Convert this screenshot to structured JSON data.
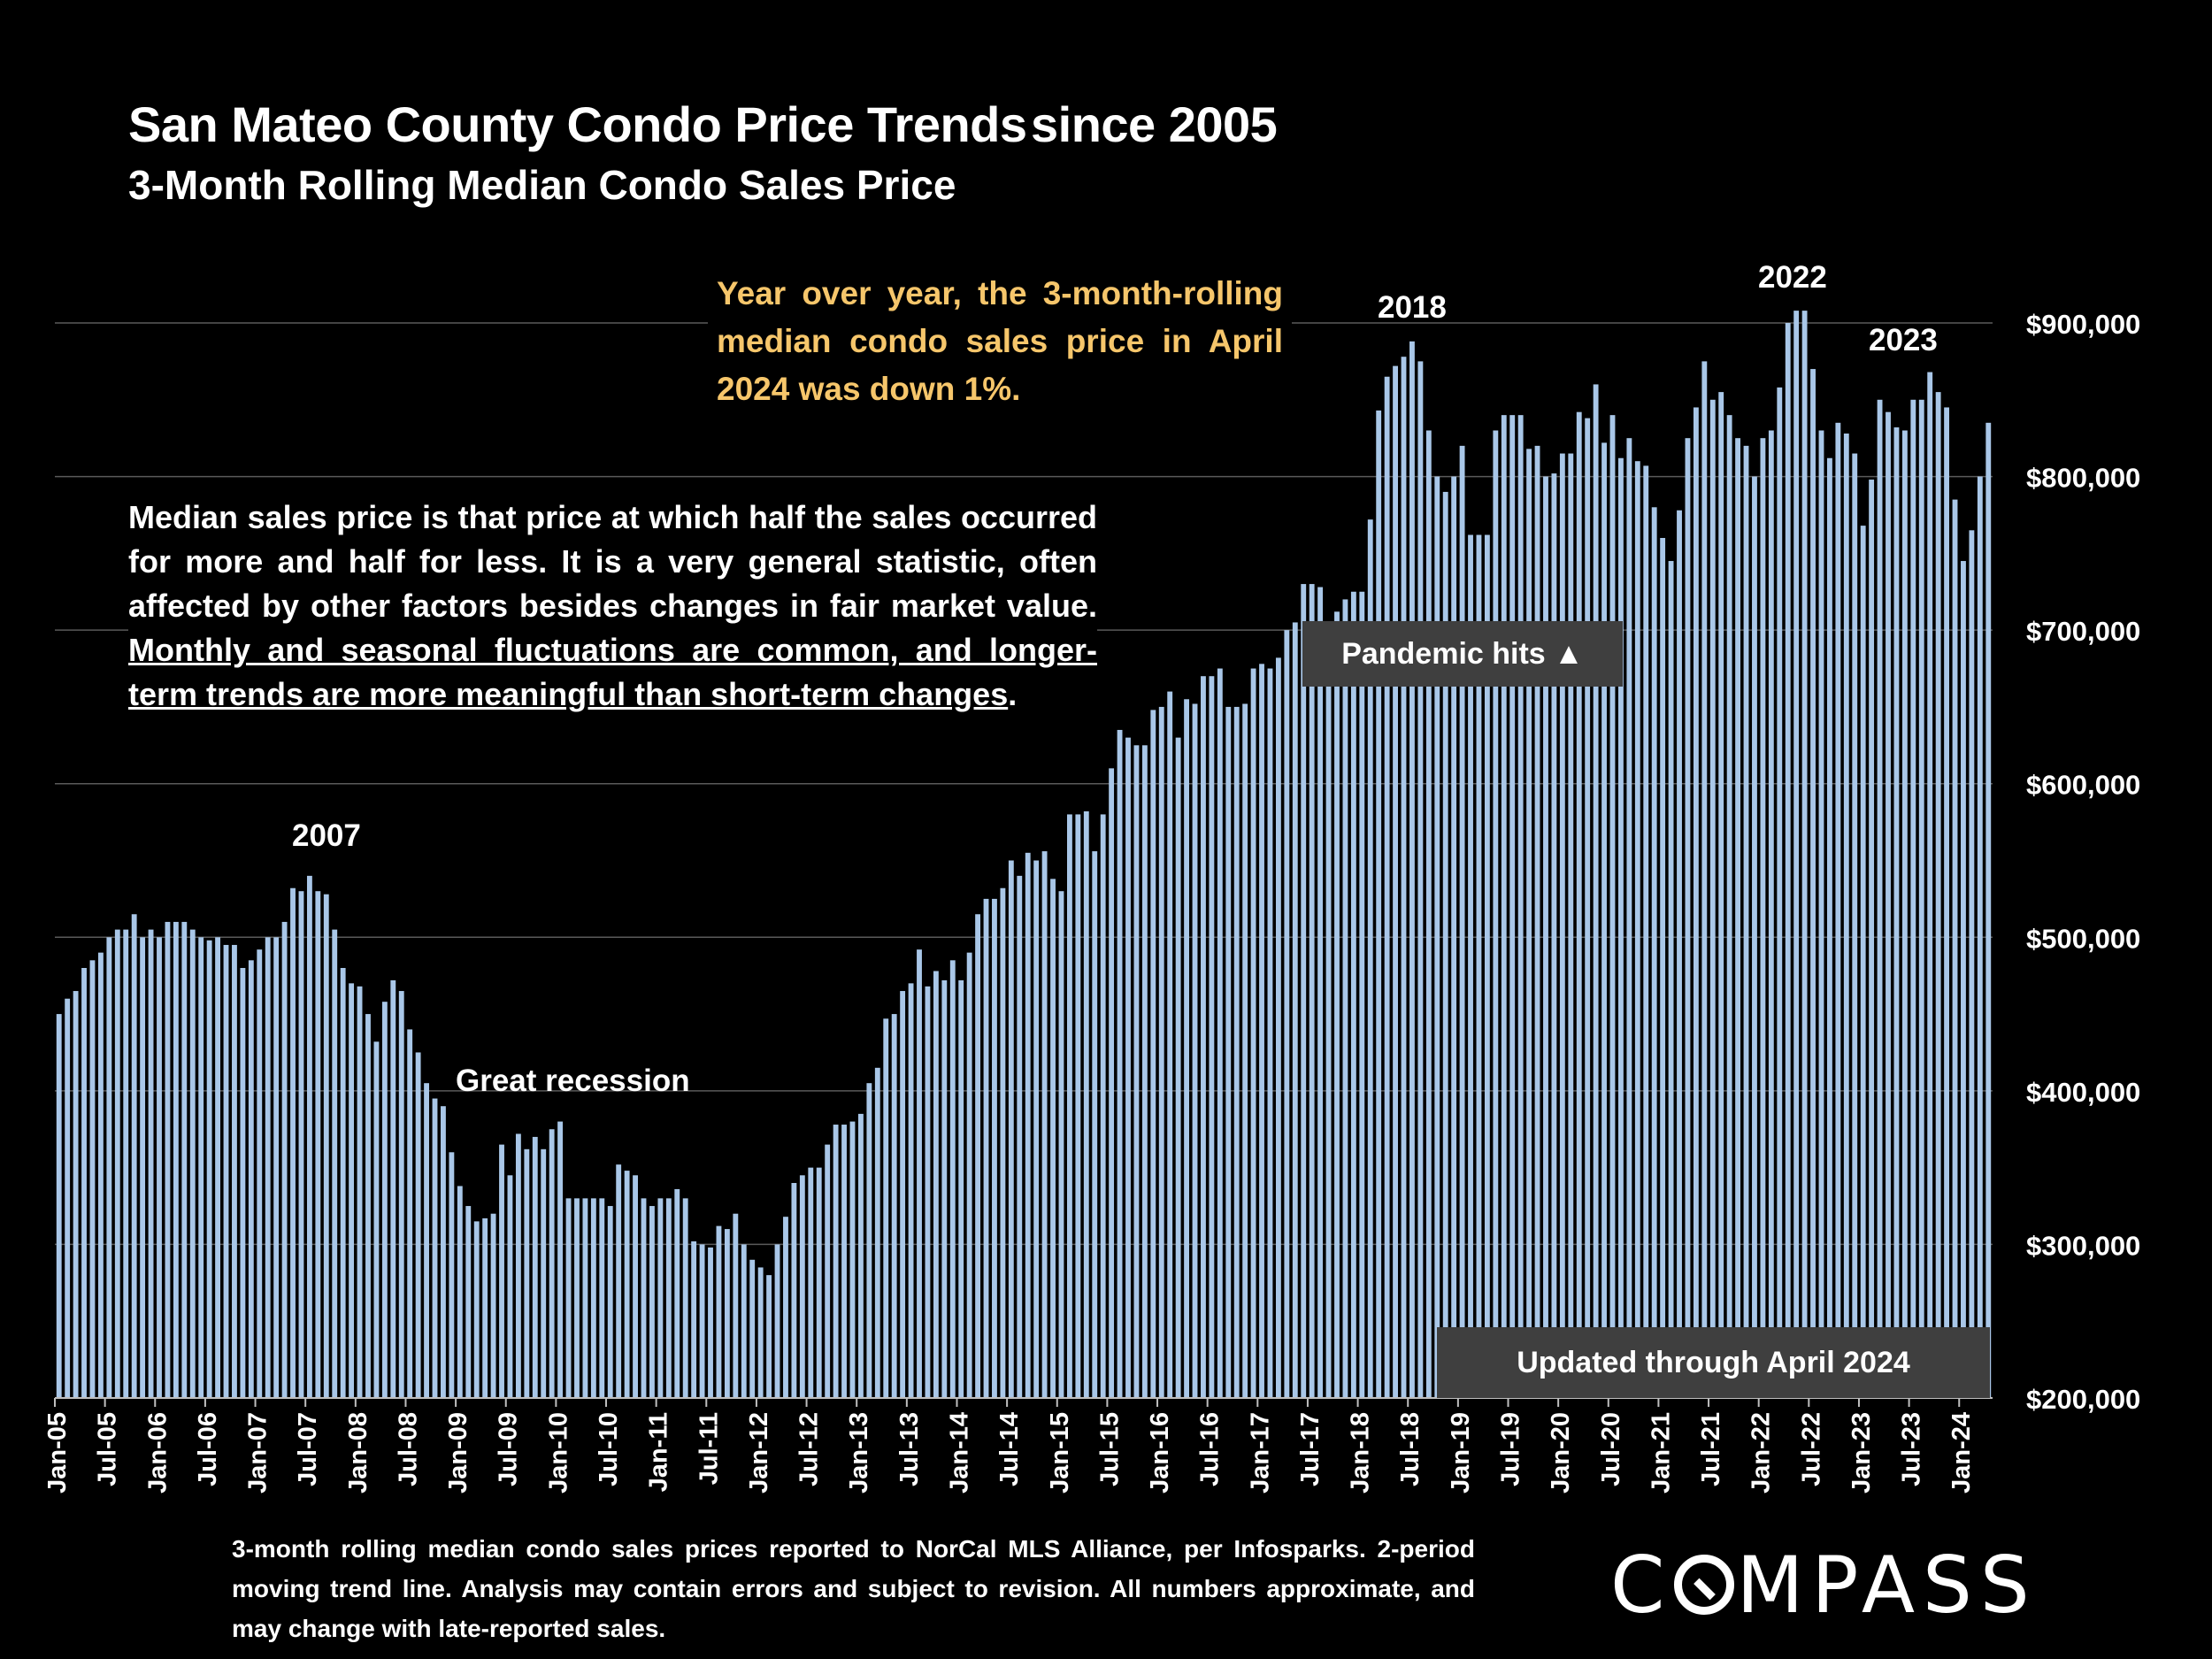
{
  "header": {
    "title": "San Mateo County Condo Price Trends",
    "title_suffix": "since 2005",
    "subtitle": "3-Month Rolling Median Condo Sales Price"
  },
  "callouts": {
    "yoy": "Year over year, the 3-month-rolling median condo sales price in April 2024 was down 1%.",
    "note_plain": "Median sales price is that price at which half the sales occurred for more and half for less. It is a very general statistic, often affected by other factors besides changes in fair market value. ",
    "note_underlined": "Monthly and seasonal fluctuations are common, and longer-term trends are more meaningful than short-term changes",
    "note_end": ".",
    "pandemic": "Pandemic hits ▲",
    "updated": "Updated through April 2024"
  },
  "annotations": {
    "y2007": "2007",
    "recession": "Great recession",
    "y2018": "2018",
    "y2022": "2022",
    "y2023": "2023"
  },
  "footnote": "3-month rolling median condo sales prices reported to NorCal MLS Alliance, per Infosparks. 2-period moving trend line. Analysis may contain errors and subject to revision. All numbers approximate, and may change with late-reported sales.",
  "logo": {
    "before": "C",
    "after": "MPASS"
  },
  "chart_data": {
    "type": "bar",
    "bar_color": "#a9c7e8",
    "grid": true,
    "ylim": [
      200000,
      900000
    ],
    "y_ticks": [
      "$200,000",
      "$300,000",
      "$400,000",
      "$500,000",
      "$600,000",
      "$700,000",
      "$800,000",
      "$900,000"
    ],
    "x_ticks": [
      "Jan-05",
      "Jul-05",
      "Jan-06",
      "Jul-06",
      "Jan-07",
      "Jul-07",
      "Jan-08",
      "Jul-08",
      "Jan-09",
      "Jul-09",
      "Jan-10",
      "Jul-10",
      "Jan-11",
      "Jul-11",
      "Jan-12",
      "Jul-12",
      "Jan-13",
      "Jul-13",
      "Jan-14",
      "Jul-14",
      "Jan-15",
      "Jul-15",
      "Jan-16",
      "Jul-16",
      "Jan-17",
      "Jul-17",
      "Jan-18",
      "Jul-18",
      "Jan-19",
      "Jul-19",
      "Jan-20",
      "Jul-20",
      "Jan-21",
      "Jul-21",
      "Jan-22",
      "Jul-22",
      "Jan-23",
      "Jul-23",
      "Jan-24"
    ],
    "x_start": "Jan-05",
    "x_end": "Apr-24",
    "values": [
      450000,
      460000,
      465000,
      480000,
      485000,
      490000,
      500000,
      505000,
      505000,
      515000,
      500000,
      505000,
      500000,
      510000,
      510000,
      510000,
      505000,
      500000,
      498000,
      500000,
      495000,
      495000,
      480000,
      485000,
      492000,
      500000,
      500000,
      510000,
      532000,
      530000,
      540000,
      530000,
      528000,
      505000,
      480000,
      470000,
      468000,
      450000,
      432000,
      458000,
      472000,
      465000,
      440000,
      425000,
      405000,
      395000,
      390000,
      360000,
      338000,
      325000,
      315000,
      317000,
      320000,
      365000,
      345000,
      372000,
      362000,
      370000,
      362000,
      375000,
      380000,
      330000,
      330000,
      330000,
      330000,
      330000,
      325000,
      352000,
      348000,
      345000,
      330000,
      325000,
      330000,
      330000,
      336000,
      330000,
      302000,
      300000,
      298000,
      312000,
      310000,
      320000,
      300000,
      290000,
      285000,
      280000,
      300000,
      318000,
      340000,
      345000,
      350000,
      350000,
      365000,
      378000,
      378000,
      380000,
      385000,
      405000,
      415000,
      447000,
      450000,
      465000,
      470000,
      492000,
      468000,
      478000,
      472000,
      485000,
      472000,
      490000,
      515000,
      525000,
      525000,
      532000,
      550000,
      540000,
      555000,
      550000,
      556000,
      538000,
      530000,
      580000,
      580000,
      582000,
      556000,
      580000,
      610000,
      635000,
      630000,
      625000,
      625000,
      648000,
      650000,
      660000,
      630000,
      655000,
      652000,
      670000,
      670000,
      675000,
      650000,
      650000,
      652000,
      675000,
      678000,
      675000,
      682000,
      700000,
      705000,
      730000,
      730000,
      728000,
      705000,
      712000,
      720000,
      725000,
      725000,
      772000,
      843000,
      865000,
      872000,
      878000,
      888000,
      875000,
      830000,
      800000,
      790000,
      800000,
      820000,
      762000,
      762000,
      762000,
      830000,
      840000,
      840000,
      840000,
      818000,
      820000,
      800000,
      802000,
      815000,
      815000,
      842000,
      838000,
      860000,
      822000,
      840000,
      812000,
      825000,
      810000,
      807000,
      780000,
      760000,
      745000,
      778000,
      825000,
      845000,
      875000,
      850000,
      855000,
      840000,
      825000,
      820000,
      800000,
      825000,
      830000,
      858000,
      900000,
      908000,
      908000,
      870000,
      830000,
      812000,
      835000,
      828000,
      815000,
      768000,
      798000,
      850000,
      842000,
      832000,
      830000,
      850000,
      850000,
      868000,
      855000,
      845000,
      785000,
      745000,
      765000,
      800000,
      835000
    ]
  }
}
